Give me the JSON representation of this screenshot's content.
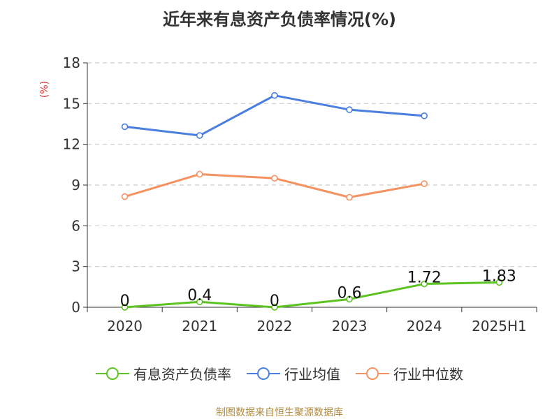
{
  "title": "近年来有息资产负债率情况(%)",
  "source": "制图数据来自恒生聚源数据库",
  "chart_data": {
    "type": "line",
    "title": "近年来有息资产负债率情况(%)",
    "ylabel": "(%)",
    "ylim": [
      0,
      18
    ],
    "yticks": [
      "0",
      "3",
      "6",
      "9",
      "12",
      "15",
      "18"
    ],
    "ytick_values": [
      0,
      3,
      6,
      9,
      12,
      15,
      18
    ],
    "categories": [
      "2020",
      "2021",
      "2022",
      "2023",
      "2024",
      "2025H1"
    ],
    "grid": true,
    "legend_position": "bottom",
    "series": [
      {
        "name": "有息资产负债率",
        "color": "#5cc320",
        "values": [
          0,
          0.4,
          0,
          0.6,
          1.72,
          1.83
        ],
        "labels": [
          "0",
          "0.4",
          "0",
          "0.6",
          "1.72",
          "1.83"
        ]
      },
      {
        "name": "行业均值",
        "color": "#4a7fe0",
        "values": [
          13.3,
          12.65,
          15.6,
          14.55,
          14.1,
          null
        ],
        "labels": []
      },
      {
        "name": "行业中位数",
        "color": "#f59261",
        "values": [
          8.15,
          9.8,
          9.5,
          8.1,
          9.1,
          null
        ],
        "labels": []
      }
    ]
  }
}
